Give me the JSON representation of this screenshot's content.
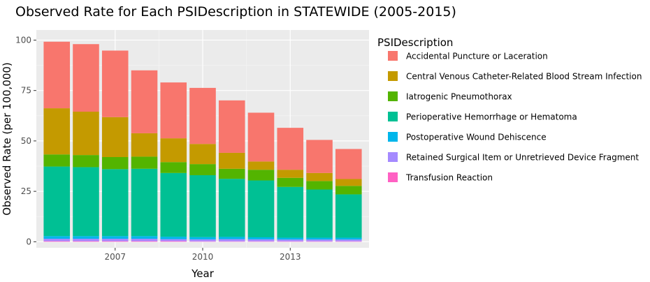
{
  "chart_data": {
    "type": "bar",
    "stacked": true,
    "title": "Observed Rate for Each PSIDescription in STATEWIDE (2005-2015)",
    "xlabel": "Year",
    "ylabel": "Observed Rate (per 100,000)",
    "x": [
      2005,
      2006,
      2007,
      2008,
      2009,
      2010,
      2011,
      2012,
      2013,
      2014,
      2015
    ],
    "x_ticks": [
      2007,
      2010,
      2013
    ],
    "y_ticks": [
      0,
      25,
      50,
      75,
      100
    ],
    "xlim": [
      2004.3,
      2015.7
    ],
    "ylim": [
      -3,
      105
    ],
    "grid": true,
    "legend_title": "PSIDescription",
    "legend_position": "right",
    "series": [
      {
        "name": "Transfusion Reaction",
        "color": "#FF61C3",
        "values": [
          0.3,
          0.3,
          0.3,
          0.3,
          0.3,
          0.2,
          0.2,
          0.2,
          0.2,
          0.2,
          0.2
        ]
      },
      {
        "name": "Retained Surgical Item or Unretrieved Device Fragment",
        "color": "#A58AFF",
        "values": [
          1.2,
          1.2,
          1.2,
          1.2,
          1.0,
          1.0,
          1.1,
          1.0,
          0.9,
          0.9,
          0.9
        ]
      },
      {
        "name": "Postoperative Wound Dehiscence",
        "color": "#00B6EB",
        "values": [
          1.3,
          1.3,
          1.3,
          1.3,
          1.2,
          1.1,
          1.1,
          1.0,
          0.9,
          0.9,
          0.9
        ]
      },
      {
        "name": "Perioperative Hemorrhage or Hematoma",
        "color": "#00C094",
        "values": [
          34.5,
          34.2,
          33.2,
          33.4,
          31.6,
          30.7,
          28.8,
          28.2,
          25.2,
          23.9,
          21.5
        ]
      },
      {
        "name": "Iatrogenic Pneumothorax",
        "color": "#53B400",
        "values": [
          6.0,
          6.0,
          6.0,
          6.0,
          5.4,
          5.5,
          5.0,
          5.3,
          4.5,
          4.2,
          4.2
        ]
      },
      {
        "name": "Central Venous Catheter-Related Blood Stream Infection",
        "color": "#C49A00",
        "values": [
          22.9,
          21.5,
          19.8,
          11.6,
          11.8,
          10.0,
          7.9,
          4.1,
          4.0,
          4.0,
          3.4
        ]
      },
      {
        "name": "Accidental Puncture or Laceration",
        "color": "#F8766D",
        "values": [
          33.0,
          33.5,
          33.0,
          31.2,
          27.7,
          27.8,
          26.0,
          24.2,
          20.8,
          16.4,
          14.9
        ]
      }
    ]
  }
}
